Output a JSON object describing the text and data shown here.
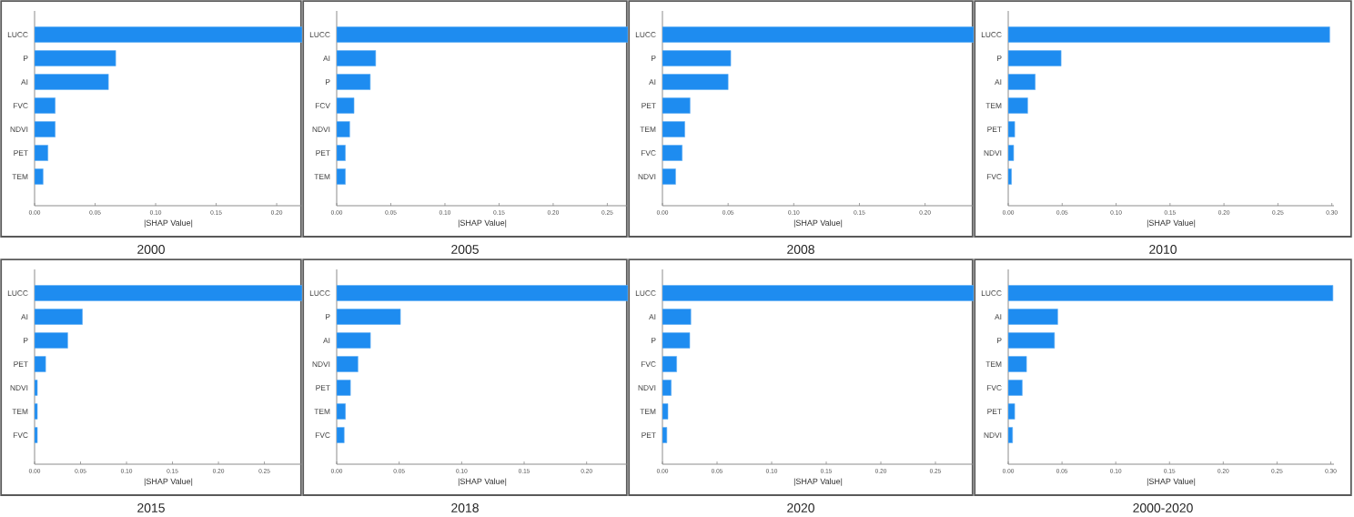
{
  "chart_data": [
    {
      "type": "bar",
      "orientation": "horizontal",
      "title": "2000",
      "xlabel": "|SHAP Value|",
      "color": "#1e8cf0",
      "categories": [
        "LUCC",
        "P",
        "AI",
        "FVC",
        "NDVI",
        "PET",
        "TEM"
      ],
      "values": [
        0.221,
        0.067,
        0.061,
        0.017,
        0.017,
        0.011,
        0.007
      ],
      "xlim": [
        0,
        0.221
      ],
      "xticks": [
        {
          "value": 0,
          "label": "0.00"
        },
        {
          "value": 0.05,
          "label": "0.05"
        },
        {
          "value": 0.1,
          "label": "0.10"
        },
        {
          "value": 0.15,
          "label": "0.15"
        },
        {
          "value": 0.2,
          "label": "0.20"
        }
      ]
    },
    {
      "type": "bar",
      "orientation": "horizontal",
      "title": "2005",
      "xlabel": "|SHAP Value|",
      "color": "#1e8cf0",
      "categories": [
        "LUCC",
        "AI",
        "P",
        "FCV",
        "NDVI",
        "PET",
        "TEM"
      ],
      "values": [
        0.269,
        0.036,
        0.031,
        0.016,
        0.012,
        0.008,
        0.008
      ],
      "xlim": [
        0,
        0.269
      ],
      "xticks": [
        {
          "value": 0,
          "label": "0.00"
        },
        {
          "value": 0.05,
          "label": "0.05"
        },
        {
          "value": 0.1,
          "label": "0.10"
        },
        {
          "value": 0.15,
          "label": "0.15"
        },
        {
          "value": 0.2,
          "label": "0.20"
        },
        {
          "value": 0.25,
          "label": "0.25"
        }
      ]
    },
    {
      "type": "bar",
      "orientation": "horizontal",
      "title": "2008",
      "xlabel": "|SHAP Value|",
      "color": "#1e8cf0",
      "categories": [
        "LUCC",
        "P",
        "AI",
        "PET",
        "TEM",
        "FVC",
        "NDVI"
      ],
      "values": [
        0.237,
        0.052,
        0.05,
        0.021,
        0.017,
        0.015,
        0.01
      ],
      "xlim": [
        0,
        0.237
      ],
      "xticks": [
        {
          "value": 0,
          "label": "0.00"
        },
        {
          "value": 0.05,
          "label": "0.05"
        },
        {
          "value": 0.1,
          "label": "0.10"
        },
        {
          "value": 0.15,
          "label": "0.15"
        },
        {
          "value": 0.2,
          "label": "0.20"
        }
      ]
    },
    {
      "type": "bar",
      "orientation": "horizontal",
      "title": "2010",
      "xlabel": "|SHAP Value|",
      "color": "#1e8cf0",
      "categories": [
        "LUCC",
        "P",
        "AI",
        "TEM",
        "PET",
        "NDVI",
        "FVC"
      ],
      "values": [
        0.298,
        0.049,
        0.025,
        0.018,
        0.006,
        0.005,
        0.003
      ],
      "xlim": [
        0,
        0.302
      ],
      "xticks": [
        {
          "value": 0,
          "label": "0.00"
        },
        {
          "value": 0.05,
          "label": "0.05"
        },
        {
          "value": 0.1,
          "label": "0.10"
        },
        {
          "value": 0.15,
          "label": "0.15"
        },
        {
          "value": 0.2,
          "label": "0.20"
        },
        {
          "value": 0.25,
          "label": "0.25"
        },
        {
          "value": 0.3,
          "label": "0.30"
        }
      ]
    },
    {
      "type": "bar",
      "orientation": "horizontal",
      "title": "2015",
      "xlabel": "|SHAP Value|",
      "color": "#1e8cf0",
      "categories": [
        "LUCC",
        "AI",
        "P",
        "PET",
        "NDVI",
        "TEM",
        "FVC"
      ],
      "values": [
        0.291,
        0.052,
        0.036,
        0.012,
        0.003,
        0.003,
        0.003
      ],
      "xlim": [
        0,
        0.291
      ],
      "xticks": [
        {
          "value": 0,
          "label": "0.00"
        },
        {
          "value": 0.05,
          "label": "0.05"
        },
        {
          "value": 0.1,
          "label": "0.10"
        },
        {
          "value": 0.15,
          "label": "0.15"
        },
        {
          "value": 0.2,
          "label": "0.20"
        },
        {
          "value": 0.25,
          "label": "0.25"
        }
      ]
    },
    {
      "type": "bar",
      "orientation": "horizontal",
      "title": "2018",
      "xlabel": "|SHAP Value|",
      "color": "#1e8cf0",
      "categories": [
        "LUCC",
        "P",
        "AI",
        "NDVI",
        "PET",
        "TEM",
        "FVC"
      ],
      "values": [
        0.233,
        0.051,
        0.027,
        0.017,
        0.011,
        0.007,
        0.006
      ],
      "xlim": [
        0,
        0.233
      ],
      "xticks": [
        {
          "value": 0,
          "label": "0.00"
        },
        {
          "value": 0.05,
          "label": "0.05"
        },
        {
          "value": 0.1,
          "label": "0.10"
        },
        {
          "value": 0.15,
          "label": "0.15"
        },
        {
          "value": 0.2,
          "label": "0.20"
        }
      ]
    },
    {
      "type": "bar",
      "orientation": "horizontal",
      "title": "2020",
      "xlabel": "|SHAP Value|",
      "color": "#1e8cf0",
      "categories": [
        "LUCC",
        "AI",
        "P",
        "FVC",
        "NDVI",
        "TEM",
        "PET"
      ],
      "values": [
        0.285,
        0.026,
        0.025,
        0.013,
        0.008,
        0.005,
        0.004
      ],
      "xlim": [
        0,
        0.285
      ],
      "xticks": [
        {
          "value": 0,
          "label": "0.00"
        },
        {
          "value": 0.05,
          "label": "0.05"
        },
        {
          "value": 0.1,
          "label": "0.10"
        },
        {
          "value": 0.15,
          "label": "0.15"
        },
        {
          "value": 0.2,
          "label": "0.20"
        },
        {
          "value": 0.25,
          "label": "0.25"
        }
      ]
    },
    {
      "type": "bar",
      "orientation": "horizontal",
      "title": "2000-2020",
      "xlabel": "|SHAP Value|",
      "color": "#1e8cf0",
      "categories": [
        "LUCC",
        "AI",
        "P",
        "TEM",
        "FVC",
        "PET",
        "NDVI"
      ],
      "values": [
        0.302,
        0.046,
        0.043,
        0.017,
        0.013,
        0.006,
        0.004
      ],
      "xlim": [
        0,
        0.303
      ],
      "xticks": [
        {
          "value": 0,
          "label": "0.00"
        },
        {
          "value": 0.05,
          "label": "0.05"
        },
        {
          "value": 0.1,
          "label": "0.10"
        },
        {
          "value": 0.15,
          "label": "0.15"
        },
        {
          "value": 0.2,
          "label": "0.20"
        },
        {
          "value": 0.25,
          "label": "0.25"
        },
        {
          "value": 0.3,
          "label": "0.30"
        }
      ]
    }
  ]
}
